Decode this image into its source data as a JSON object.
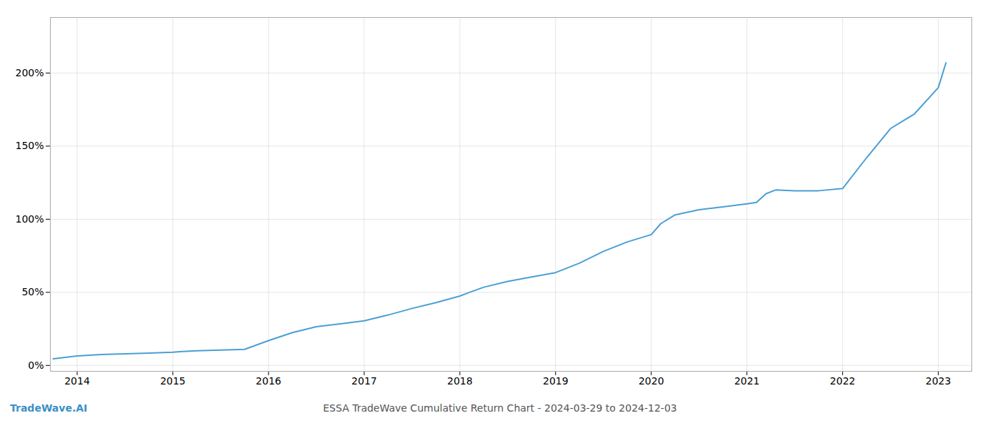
{
  "chart_data": {
    "type": "line",
    "x": [
      2013.75,
      2014.0,
      2014.25,
      2014.5,
      2014.75,
      2015.0,
      2015.1,
      2015.25,
      2015.5,
      2015.75,
      2016.0,
      2016.25,
      2016.5,
      2016.75,
      2017.0,
      2017.25,
      2017.5,
      2017.75,
      2018.0,
      2018.1,
      2018.25,
      2018.5,
      2018.75,
      2019.0,
      2019.25,
      2019.5,
      2019.75,
      2020.0,
      2020.1,
      2020.25,
      2020.5,
      2020.75,
      2021.0,
      2021.1,
      2021.2,
      2021.3,
      2021.5,
      2021.75,
      2022.0,
      2022.25,
      2022.5,
      2022.75,
      2023.0,
      2023.08
    ],
    "values": [
      0.045,
      0.065,
      0.075,
      0.08,
      0.085,
      0.09,
      0.095,
      0.1,
      0.105,
      0.11,
      0.17,
      0.225,
      0.265,
      0.285,
      0.305,
      0.345,
      0.39,
      0.43,
      0.475,
      0.5,
      0.535,
      0.575,
      0.605,
      0.635,
      0.7,
      0.78,
      0.845,
      0.895,
      0.97,
      1.03,
      1.065,
      1.085,
      1.105,
      1.115,
      1.175,
      1.2,
      1.195,
      1.195,
      1.21,
      1.42,
      1.62,
      1.72,
      1.9,
      2.07
    ],
    "color": "#4a9fd4",
    "xlim": [
      2013.72,
      2023.35
    ],
    "xticks": [
      2014,
      2015,
      2016,
      2017,
      2018,
      2019,
      2020,
      2021,
      2022,
      2023
    ],
    "ylim": [
      -0.04,
      2.38
    ],
    "yticks": [
      {
        "value": 0.0,
        "label": "0%"
      },
      {
        "value": 0.5,
        "label": "50%"
      },
      {
        "value": 1.0,
        "label": "100%"
      },
      {
        "value": 1.5,
        "label": "150%"
      },
      {
        "value": 2.0,
        "label": "200%"
      }
    ],
    "grid": true,
    "annotations": [
      {
        "text": "TradeWave.AI",
        "color": "#3a90c8"
      },
      {
        "text": "ESSA TradeWave Cumulative Return Chart - 2024-03-29 to 2024-12-03",
        "color": "#555555"
      }
    ]
  }
}
